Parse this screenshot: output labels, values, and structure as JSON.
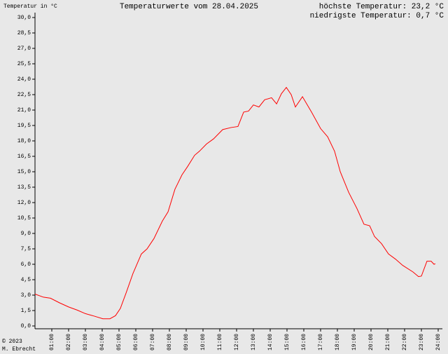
{
  "chart_data": {
    "type": "line",
    "title": "Temperaturwerte vom 28.04.2025",
    "y_label": "Temperatur in °C",
    "annotations": [
      "höchste Temperatur: 23,2 °C",
      "niedrigste Temperatur: 0,7 °C"
    ],
    "footer": [
      "© 2023",
      "M. Ebrecht"
    ],
    "color": "#ff0000",
    "x": [
      0,
      0.5,
      0.92,
      1.46,
      2.0,
      2.5,
      3.0,
      3.54,
      4.04,
      4.46,
      4.79,
      5.08,
      5.42,
      5.83,
      6.33,
      6.67,
      7.08,
      7.58,
      7.92,
      8.33,
      8.75,
      9.08,
      9.5,
      9.79,
      10.21,
      10.63,
      11.17,
      11.67,
      12.08,
      12.42,
      12.71,
      13.0,
      13.33,
      13.67,
      14.08,
      14.38,
      14.67,
      14.96,
      15.25,
      15.5,
      15.92,
      16.46,
      17.0,
      17.42,
      17.83,
      18.17,
      18.67,
      19.17,
      19.58,
      19.92,
      20.21,
      20.63,
      21.04,
      21.46,
      21.88,
      22.5,
      22.83,
      23.0,
      23.33,
      23.58,
      23.75,
      23.83
    ],
    "values": [
      3.1,
      2.8,
      2.7,
      2.25,
      1.85,
      1.55,
      1.2,
      0.95,
      0.7,
      0.7,
      1.0,
      1.7,
      3.2,
      5.1,
      7.0,
      7.5,
      8.5,
      10.2,
      11.1,
      13.3,
      14.7,
      15.5,
      16.6,
      17.0,
      17.7,
      18.2,
      19.1,
      19.3,
      19.4,
      20.8,
      20.9,
      21.5,
      21.3,
      22.0,
      22.2,
      21.6,
      22.6,
      23.2,
      22.5,
      21.3,
      22.3,
      20.8,
      19.2,
      18.4,
      17.0,
      15.0,
      13.0,
      11.4,
      9.9,
      9.75,
      8.7,
      8.0,
      7.0,
      6.5,
      5.9,
      5.25,
      4.8,
      4.85,
      6.3,
      6.3,
      6.0,
      6.05
    ],
    "xlim": [
      0,
      24
    ],
    "xticks": [
      {
        "value": 1,
        "label": "01:00"
      },
      {
        "value": 2,
        "label": "02:00"
      },
      {
        "value": 3,
        "label": "03:00"
      },
      {
        "value": 4,
        "label": "04:00"
      },
      {
        "value": 5,
        "label": "05:00"
      },
      {
        "value": 6,
        "label": "06:00"
      },
      {
        "value": 7,
        "label": "07:00"
      },
      {
        "value": 8,
        "label": "08:00"
      },
      {
        "value": 9,
        "label": "09:00"
      },
      {
        "value": 10,
        "label": "10:00"
      },
      {
        "value": 11,
        "label": "11:00"
      },
      {
        "value": 12,
        "label": "12:00"
      },
      {
        "value": 13,
        "label": "13:00"
      },
      {
        "value": 14,
        "label": "14:00"
      },
      {
        "value": 15,
        "label": "15:00"
      },
      {
        "value": 16,
        "label": "16:00"
      },
      {
        "value": 17,
        "label": "17:00"
      },
      {
        "value": 18,
        "label": "18:00"
      },
      {
        "value": 19,
        "label": "19:00"
      },
      {
        "value": 20,
        "label": "20:00"
      },
      {
        "value": 21,
        "label": "21:00"
      },
      {
        "value": 22,
        "label": "22:00"
      },
      {
        "value": 23,
        "label": "23:00"
      },
      {
        "value": 24,
        "label": "24:00"
      }
    ],
    "ylim": [
      0,
      30
    ],
    "yticks": [
      {
        "value": 0,
        "label": "0,0"
      },
      {
        "value": 1.5,
        "label": "1,5"
      },
      {
        "value": 3,
        "label": "3,0"
      },
      {
        "value": 4.5,
        "label": "4,5"
      },
      {
        "value": 6,
        "label": "6,0"
      },
      {
        "value": 7.5,
        "label": "7,5"
      },
      {
        "value": 9,
        "label": "9,0"
      },
      {
        "value": 10.5,
        "label": "10,5"
      },
      {
        "value": 12,
        "label": "12,0"
      },
      {
        "value": 13.5,
        "label": "13,5"
      },
      {
        "value": 15,
        "label": "15,0"
      },
      {
        "value": 16.5,
        "label": "16,5"
      },
      {
        "value": 18,
        "label": "18,0"
      },
      {
        "value": 19.5,
        "label": "19,5"
      },
      {
        "value": 21,
        "label": "21,0"
      },
      {
        "value": 22.5,
        "label": "22,5"
      },
      {
        "value": 24,
        "label": "24,0"
      },
      {
        "value": 25.5,
        "label": "25,5"
      },
      {
        "value": 27,
        "label": "27,0"
      },
      {
        "value": 28.5,
        "label": "28,5"
      },
      {
        "value": 30,
        "label": "30,0"
      }
    ],
    "grid": false
  }
}
